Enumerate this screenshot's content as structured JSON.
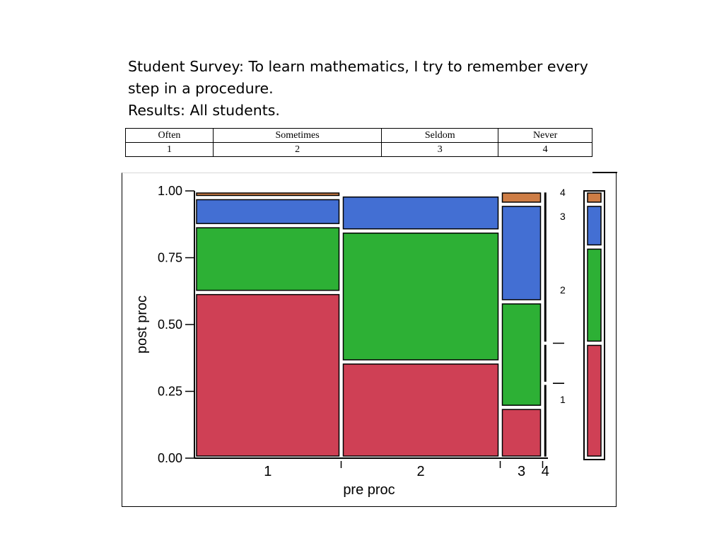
{
  "title": {
    "line1": "Student Survey:   To learn mathematics, I try to remember every",
    "line2": "step in a procedure.",
    "line3": "Results:  All students."
  },
  "legend_table": {
    "headers": [
      "Often",
      "Sometimes",
      "Seldom",
      "Never"
    ],
    "codes": [
      "1",
      "2",
      "3",
      "4"
    ]
  },
  "colors": {
    "1": "#cf4055",
    "2": "#2db035",
    "3": "#436fd3",
    "4": "#ce7d45"
  },
  "chart_data": {
    "type": "mosaic",
    "xlabel": "pre proc",
    "ylabel": "post proc",
    "yticks": [
      "0.00",
      "0.25",
      "0.50",
      "0.75",
      "1.00"
    ],
    "ylim": [
      0,
      1
    ],
    "columns": [
      {
        "category": "1",
        "width": 0.415,
        "segments": [
          {
            "category": "1",
            "value": 0.62
          },
          {
            "category": "2",
            "value": 0.25
          },
          {
            "category": "3",
            "value": 0.105
          },
          {
            "category": "4",
            "value": 0.025
          }
        ]
      },
      {
        "category": "2",
        "width": 0.45,
        "segments": [
          {
            "category": "1",
            "value": 0.36
          },
          {
            "category": "2",
            "value": 0.49
          },
          {
            "category": "3",
            "value": 0.135
          },
          {
            "category": "4",
            "value": 0.015
          }
        ]
      },
      {
        "category": "3",
        "width": 0.12,
        "segments": [
          {
            "category": "1",
            "value": 0.19
          },
          {
            "category": "2",
            "value": 0.395
          },
          {
            "category": "3",
            "value": 0.365
          },
          {
            "category": "4",
            "value": 0.05
          }
        ]
      },
      {
        "category": "4",
        "width": 0.015,
        "segments": [
          {
            "category": "1",
            "value": 0.28
          },
          {
            "category": "2",
            "value": 0
          },
          {
            "category": "3",
            "value": 0.15
          },
          {
            "category": "4",
            "value": 0.57
          }
        ]
      }
    ],
    "right_axis_labels": [
      "1",
      "2",
      "3",
      "4"
    ],
    "marginal": [
      {
        "category": "1",
        "value": 0.43
      },
      {
        "category": "2",
        "value": 0.36
      },
      {
        "category": "3",
        "value": 0.16
      },
      {
        "category": "4",
        "value": 0.05
      }
    ]
  }
}
